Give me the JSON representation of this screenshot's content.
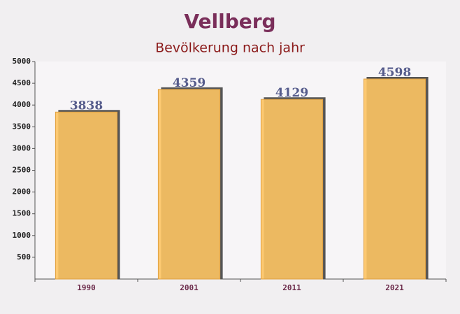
{
  "chart_data": {
    "type": "bar",
    "title": "Vellberg",
    "subtitle": "Bevölkerung nach jahr",
    "categories": [
      "1990",
      "2001",
      "2011",
      "2021"
    ],
    "values": [
      3838,
      4359,
      4129,
      4598
    ],
    "color": "#fdc463",
    "ylim": [
      0,
      5000
    ],
    "yticks": [
      500,
      1000,
      1500,
      2000,
      2500,
      3000,
      3500,
      4000,
      4500,
      5000
    ],
    "grid": false
  }
}
